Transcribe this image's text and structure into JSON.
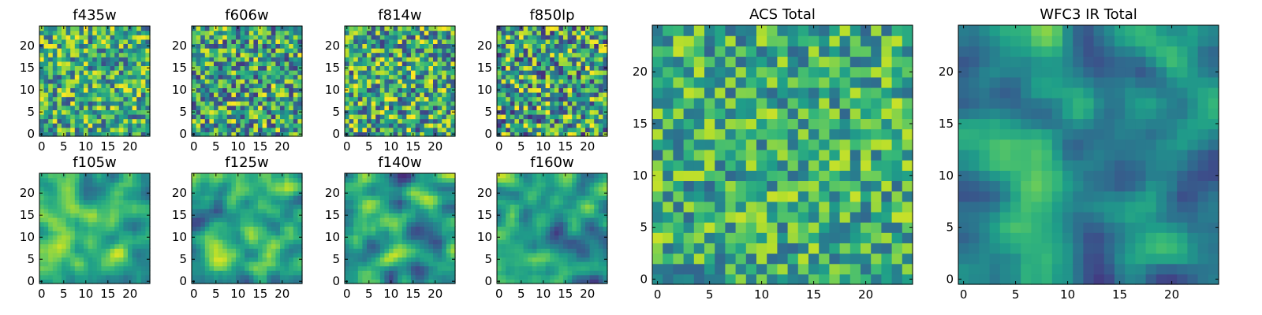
{
  "chart_data": [
    {
      "type": "heatmap",
      "title": "f435w",
      "xticks": [
        0,
        5,
        10,
        15,
        20
      ],
      "yticks": [
        0,
        5,
        10,
        15,
        20
      ],
      "grid_size": 25,
      "mean": 0.62,
      "spread": 0.38,
      "structure": "noise",
      "seed": 11
    },
    {
      "type": "heatmap",
      "title": "f606w",
      "xticks": [
        0,
        5,
        10,
        15,
        20
      ],
      "yticks": [
        0,
        5,
        10,
        15,
        20
      ],
      "grid_size": 25,
      "mean": 0.58,
      "spread": 0.42,
      "structure": "noise",
      "seed": 23
    },
    {
      "type": "heatmap",
      "title": "f814w",
      "xticks": [
        0,
        5,
        10,
        15,
        20
      ],
      "yticks": [
        0,
        5,
        10,
        15,
        20
      ],
      "grid_size": 25,
      "mean": 0.6,
      "spread": 0.42,
      "structure": "noise",
      "seed": 37
    },
    {
      "type": "heatmap",
      "title": "f850lp",
      "xticks": [
        0,
        5,
        10,
        15,
        20
      ],
      "yticks": [
        0,
        5,
        10,
        15,
        20
      ],
      "grid_size": 25,
      "mean": 0.57,
      "spread": 0.45,
      "structure": "noise",
      "seed": 41
    },
    {
      "type": "heatmap",
      "title": "f105w",
      "xticks": [
        0,
        5,
        10,
        15,
        20
      ],
      "yticks": [
        0,
        5,
        10,
        15,
        20
      ],
      "grid_size": 25,
      "mean": 0.64,
      "spread": 0.3,
      "structure": "smooth",
      "seed": 53
    },
    {
      "type": "heatmap",
      "title": "f125w",
      "xticks": [
        0,
        5,
        10,
        15,
        20
      ],
      "yticks": [
        0,
        5,
        10,
        15,
        20
      ],
      "grid_size": 25,
      "mean": 0.58,
      "spread": 0.36,
      "structure": "smooth",
      "seed": 67
    },
    {
      "type": "heatmap",
      "title": "f140w",
      "xticks": [
        0,
        5,
        10,
        15,
        20
      ],
      "yticks": [
        0,
        5,
        10,
        15,
        20
      ],
      "grid_size": 25,
      "mean": 0.52,
      "spread": 0.4,
      "structure": "smooth",
      "seed": 71
    },
    {
      "type": "heatmap",
      "title": "f160w",
      "xticks": [
        0,
        5,
        10,
        15,
        20
      ],
      "yticks": [
        0,
        5,
        10,
        15,
        20
      ],
      "grid_size": 25,
      "mean": 0.55,
      "spread": 0.38,
      "structure": "smooth",
      "seed": 83
    },
    {
      "type": "heatmap",
      "title": "ACS Total",
      "xticks": [
        0,
        5,
        10,
        15,
        20
      ],
      "yticks": [
        0,
        5,
        10,
        15,
        20
      ],
      "grid_size": 25,
      "mean": 0.62,
      "spread": 0.3,
      "structure": "noise",
      "seed": 97
    },
    {
      "type": "heatmap",
      "title": "WFC3 IR Total",
      "xticks": [
        0,
        5,
        10,
        15,
        20
      ],
      "yticks": [
        0,
        5,
        10,
        15,
        20
      ],
      "grid_size": 25,
      "mean": 0.5,
      "spread": 0.32,
      "structure": "smooth",
      "seed": 101
    }
  ]
}
